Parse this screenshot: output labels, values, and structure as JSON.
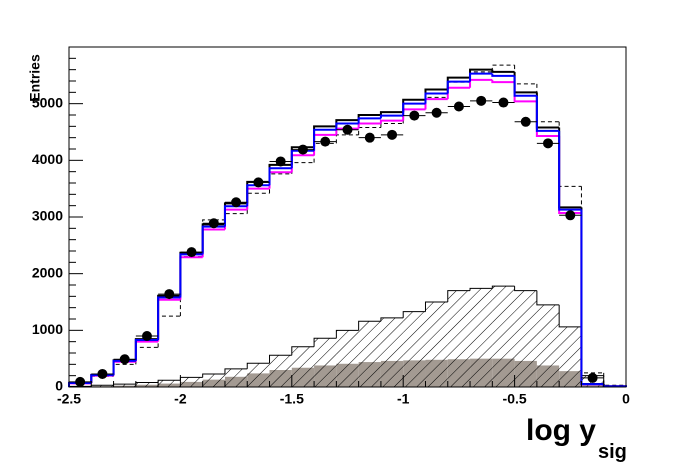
{
  "chart_data": {
    "type": "histogram",
    "ylabel": "Entries",
    "xlabel": "log y",
    "xlabel_sub": "sig",
    "bins": [
      -2.5,
      -2.4,
      -2.3,
      -2.2,
      -2.1,
      -2.0,
      -1.9,
      -1.8,
      -1.7,
      -1.6,
      -1.5,
      -1.4,
      -1.3,
      -1.2,
      -1.1,
      -1.0,
      -0.9,
      -0.8,
      -0.7,
      -0.6,
      -0.5,
      -0.4,
      -0.3,
      -0.2,
      -0.1,
      0.0
    ],
    "xlim": [
      -2.5,
      0
    ],
    "xticks": [
      -2.5,
      -2,
      -1.5,
      -1,
      -0.5,
      0
    ],
    "ylim": [
      0,
      6000
    ],
    "yticks": [
      0,
      1000,
      2000,
      3000,
      4000,
      5000
    ],
    "series": [
      {
        "style": "filled",
        "color": "#a39a92",
        "values": [
          5,
          15,
          25,
          40,
          60,
          90,
          130,
          180,
          240,
          300,
          340,
          380,
          410,
          440,
          460,
          470,
          480,
          490,
          500,
          500,
          460,
          380,
          280,
          60,
          10
        ]
      },
      {
        "style": "hatched",
        "color": "#000000",
        "values": [
          10,
          30,
          50,
          80,
          120,
          170,
          230,
          320,
          420,
          560,
          710,
          860,
          1000,
          1160,
          1220,
          1330,
          1500,
          1700,
          1740,
          1780,
          1700,
          1450,
          1060,
          200,
          20
        ]
      },
      {
        "style": "dashed",
        "color": "#000000",
        "values": [
          60,
          190,
          400,
          700,
          1250,
          2300,
          2950,
          3060,
          3420,
          3760,
          3960,
          4300,
          4450,
          4580,
          4650,
          4900,
          5110,
          5380,
          5560,
          5680,
          5350,
          4680,
          3540,
          250,
          30
        ]
      },
      {
        "style": "line",
        "color": "#ff00ff",
        "values": [
          65,
          200,
          445,
          800,
          1540,
          2290,
          2780,
          3130,
          3500,
          3790,
          4090,
          4450,
          4560,
          4650,
          4700,
          4900,
          5080,
          5280,
          5420,
          5380,
          5040,
          4430,
          3070,
          48,
          10
        ]
      },
      {
        "style": "line",
        "color": "#000000",
        "values": [
          72,
          215,
          470,
          845,
          1610,
          2370,
          2870,
          3240,
          3620,
          3920,
          4230,
          4600,
          4710,
          4800,
          4850,
          5070,
          5250,
          5460,
          5600,
          5560,
          5200,
          4580,
          3170,
          52,
          10
        ]
      },
      {
        "style": "line",
        "color": "#0000ff",
        "values": [
          70,
          210,
          460,
          830,
          1580,
          2340,
          2830,
          3190,
          3560,
          3860,
          4170,
          4540,
          4650,
          4740,
          4790,
          5000,
          5180,
          5390,
          5530,
          5490,
          5140,
          4520,
          3130,
          50,
          10
        ]
      },
      {
        "style": "points",
        "color": "#000000",
        "values": [
          90,
          230,
          490,
          900,
          1640,
          2380,
          2890,
          3260,
          3610,
          3980,
          4190,
          4330,
          4540,
          4400,
          4450,
          4790,
          4840,
          4950,
          5050,
          5020,
          4680,
          4300,
          3030,
          160,
          null
        ]
      }
    ]
  }
}
